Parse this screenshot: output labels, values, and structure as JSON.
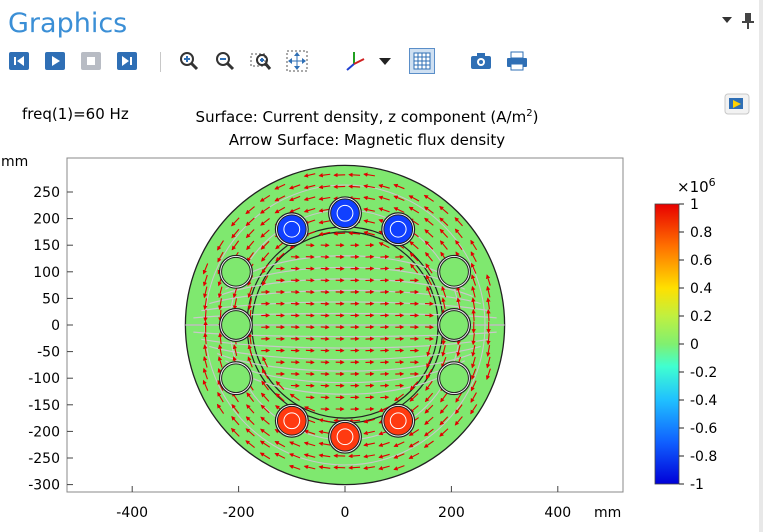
{
  "panel": {
    "title": "Graphics"
  },
  "toolbar": {
    "buttons": [
      "first-frame",
      "play",
      "stop",
      "last-frame",
      "zoom-in",
      "zoom-out",
      "zoom-box",
      "zoom-extents",
      "view-axis",
      "view-dropdown",
      "grid-toggle",
      "snapshot",
      "print"
    ]
  },
  "plot": {
    "freq_label": "freq(1)=60 Hz",
    "title_line1": "Surface: Current density, z component (A/m",
    "title_sup": "2",
    "title_close": ")",
    "title_line2": "Arrow Surface: Magnetic flux density",
    "y_unit": "mm",
    "x_unit": "mm",
    "colors": {
      "background": "#7fe86f",
      "positive": "#ff3a10",
      "negative": "#1040ff",
      "arrow": "#e00000",
      "streamline": "#c8c8c8"
    }
  },
  "chart_data": {
    "type": "heatmap",
    "xticks": [
      "-400",
      "-200",
      "0",
      "200",
      "400"
    ],
    "xtick_values": [
      -400,
      -200,
      0,
      200,
      400
    ],
    "yticks": [
      "250",
      "200",
      "150",
      "100",
      "50",
      "0",
      "-50",
      "-100",
      "-150",
      "-200",
      "-250",
      "-300"
    ],
    "ytick_values": [
      250,
      200,
      150,
      100,
      50,
      0,
      -50,
      -100,
      -150,
      -200,
      -250,
      -300
    ],
    "xlim": [
      -520,
      520
    ],
    "ylim": [
      -310,
      315
    ],
    "colorbar": {
      "multiplier": "×10",
      "exponent": "6",
      "ticks": [
        "1",
        "0.8",
        "0.6",
        "0.4",
        "0.2",
        "0",
        "-0.2",
        "-0.4",
        "-0.6",
        "-0.8",
        "-1"
      ],
      "tick_values": [
        1,
        0.8,
        0.6,
        0.4,
        0.2,
        0,
        -0.2,
        -0.4,
        -0.6,
        -0.8,
        -1
      ],
      "range": [
        -1,
        1
      ]
    },
    "outer_radius": 300,
    "inner_radius": 175,
    "conductors": [
      {
        "x": -100,
        "y": 180,
        "value": -1
      },
      {
        "x": 0,
        "y": 210,
        "value": -1
      },
      {
        "x": 100,
        "y": 180,
        "value": -1
      },
      {
        "x": -100,
        "y": -180,
        "value": 1
      },
      {
        "x": 0,
        "y": -210,
        "value": 1
      },
      {
        "x": 100,
        "y": -180,
        "value": 1
      },
      {
        "x": -205,
        "y": 100,
        "value": 0
      },
      {
        "x": -205,
        "y": 0,
        "value": 0
      },
      {
        "x": -205,
        "y": -100,
        "value": 0
      },
      {
        "x": 205,
        "y": 100,
        "value": 0
      },
      {
        "x": 205,
        "y": 0,
        "value": 0
      },
      {
        "x": 205,
        "y": -100,
        "value": 0
      }
    ]
  }
}
